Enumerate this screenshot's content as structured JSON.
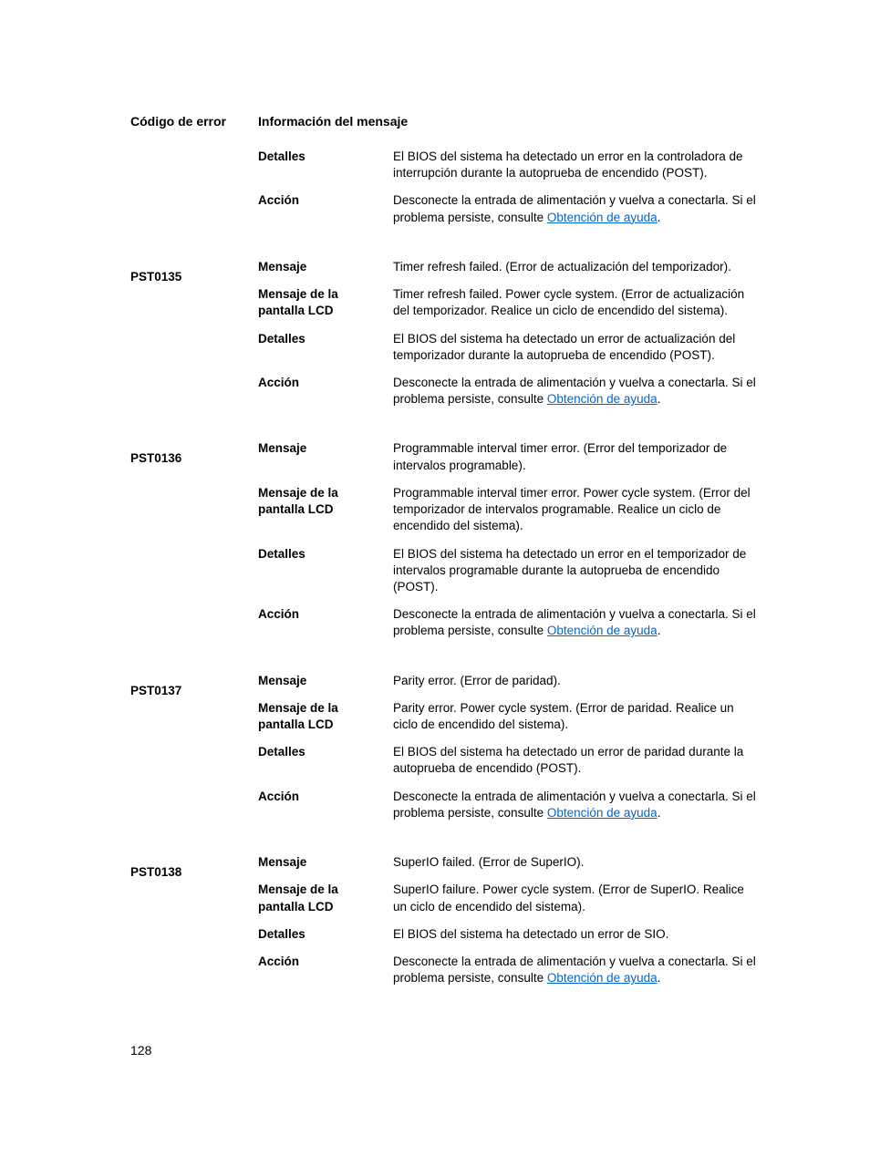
{
  "headers": {
    "code": "Código de error",
    "info": "Información del mensaje"
  },
  "labels": {
    "mensaje": "Mensaje",
    "mensaje_lcd": "Mensaje de la pantalla LCD",
    "detalles": "Detalles",
    "accion": "Acción"
  },
  "action_common": {
    "prefix": "Desconecte la entrada de alimentación y vuelva a conectarla. Si el problema persiste, consulte ",
    "link_text": "Obtención de ayuda",
    "suffix": "."
  },
  "intro": {
    "detalles": "El BIOS del sistema ha detectado un error en la controladora de interrupción durante la autoprueba de encendido (POST)."
  },
  "errors": [
    {
      "code": "PST0135",
      "mensaje": "Timer refresh failed. (Error de actualización del temporizador).",
      "mensaje_lcd": "Timer refresh failed. Power cycle system. (Error de actualización del temporizador. Realice un ciclo de encendido del sistema).",
      "detalles": "El BIOS del sistema ha detectado un error de actualización del temporizador durante la autoprueba de encendido (POST)."
    },
    {
      "code": "PST0136",
      "mensaje": "Programmable interval timer error. (Error del temporizador de intervalos programable).",
      "mensaje_lcd": "Programmable interval timer error. Power cycle system. (Error del temporizador de intervalos programable. Realice un ciclo de encendido del sistema).",
      "detalles": "El BIOS del sistema ha detectado un error en el temporizador de intervalos programable durante la autoprueba de encendido (POST)."
    },
    {
      "code": "PST0137",
      "mensaje": "Parity error. (Error de paridad).",
      "mensaje_lcd": "Parity error. Power cycle system. (Error de paridad. Realice un ciclo de encendido del sistema).",
      "detalles": "El BIOS del sistema ha detectado un error de paridad durante la autoprueba de encendido (POST)."
    },
    {
      "code": "PST0138",
      "mensaje": "SuperIO failed. (Error de SuperIO).",
      "mensaje_lcd": "SuperIO failure. Power cycle system. (Error de SuperIO. Realice un ciclo de encendido del sistema).",
      "detalles": "El BIOS del sistema ha detectado un error de SIO."
    }
  ],
  "page_number": "128",
  "colors": {
    "text": "#000000",
    "link": "#0066cc",
    "background": "#ffffff"
  },
  "typography": {
    "body_fontsize": 13.5,
    "header_fontsize": 14,
    "font_family": "Arial"
  }
}
